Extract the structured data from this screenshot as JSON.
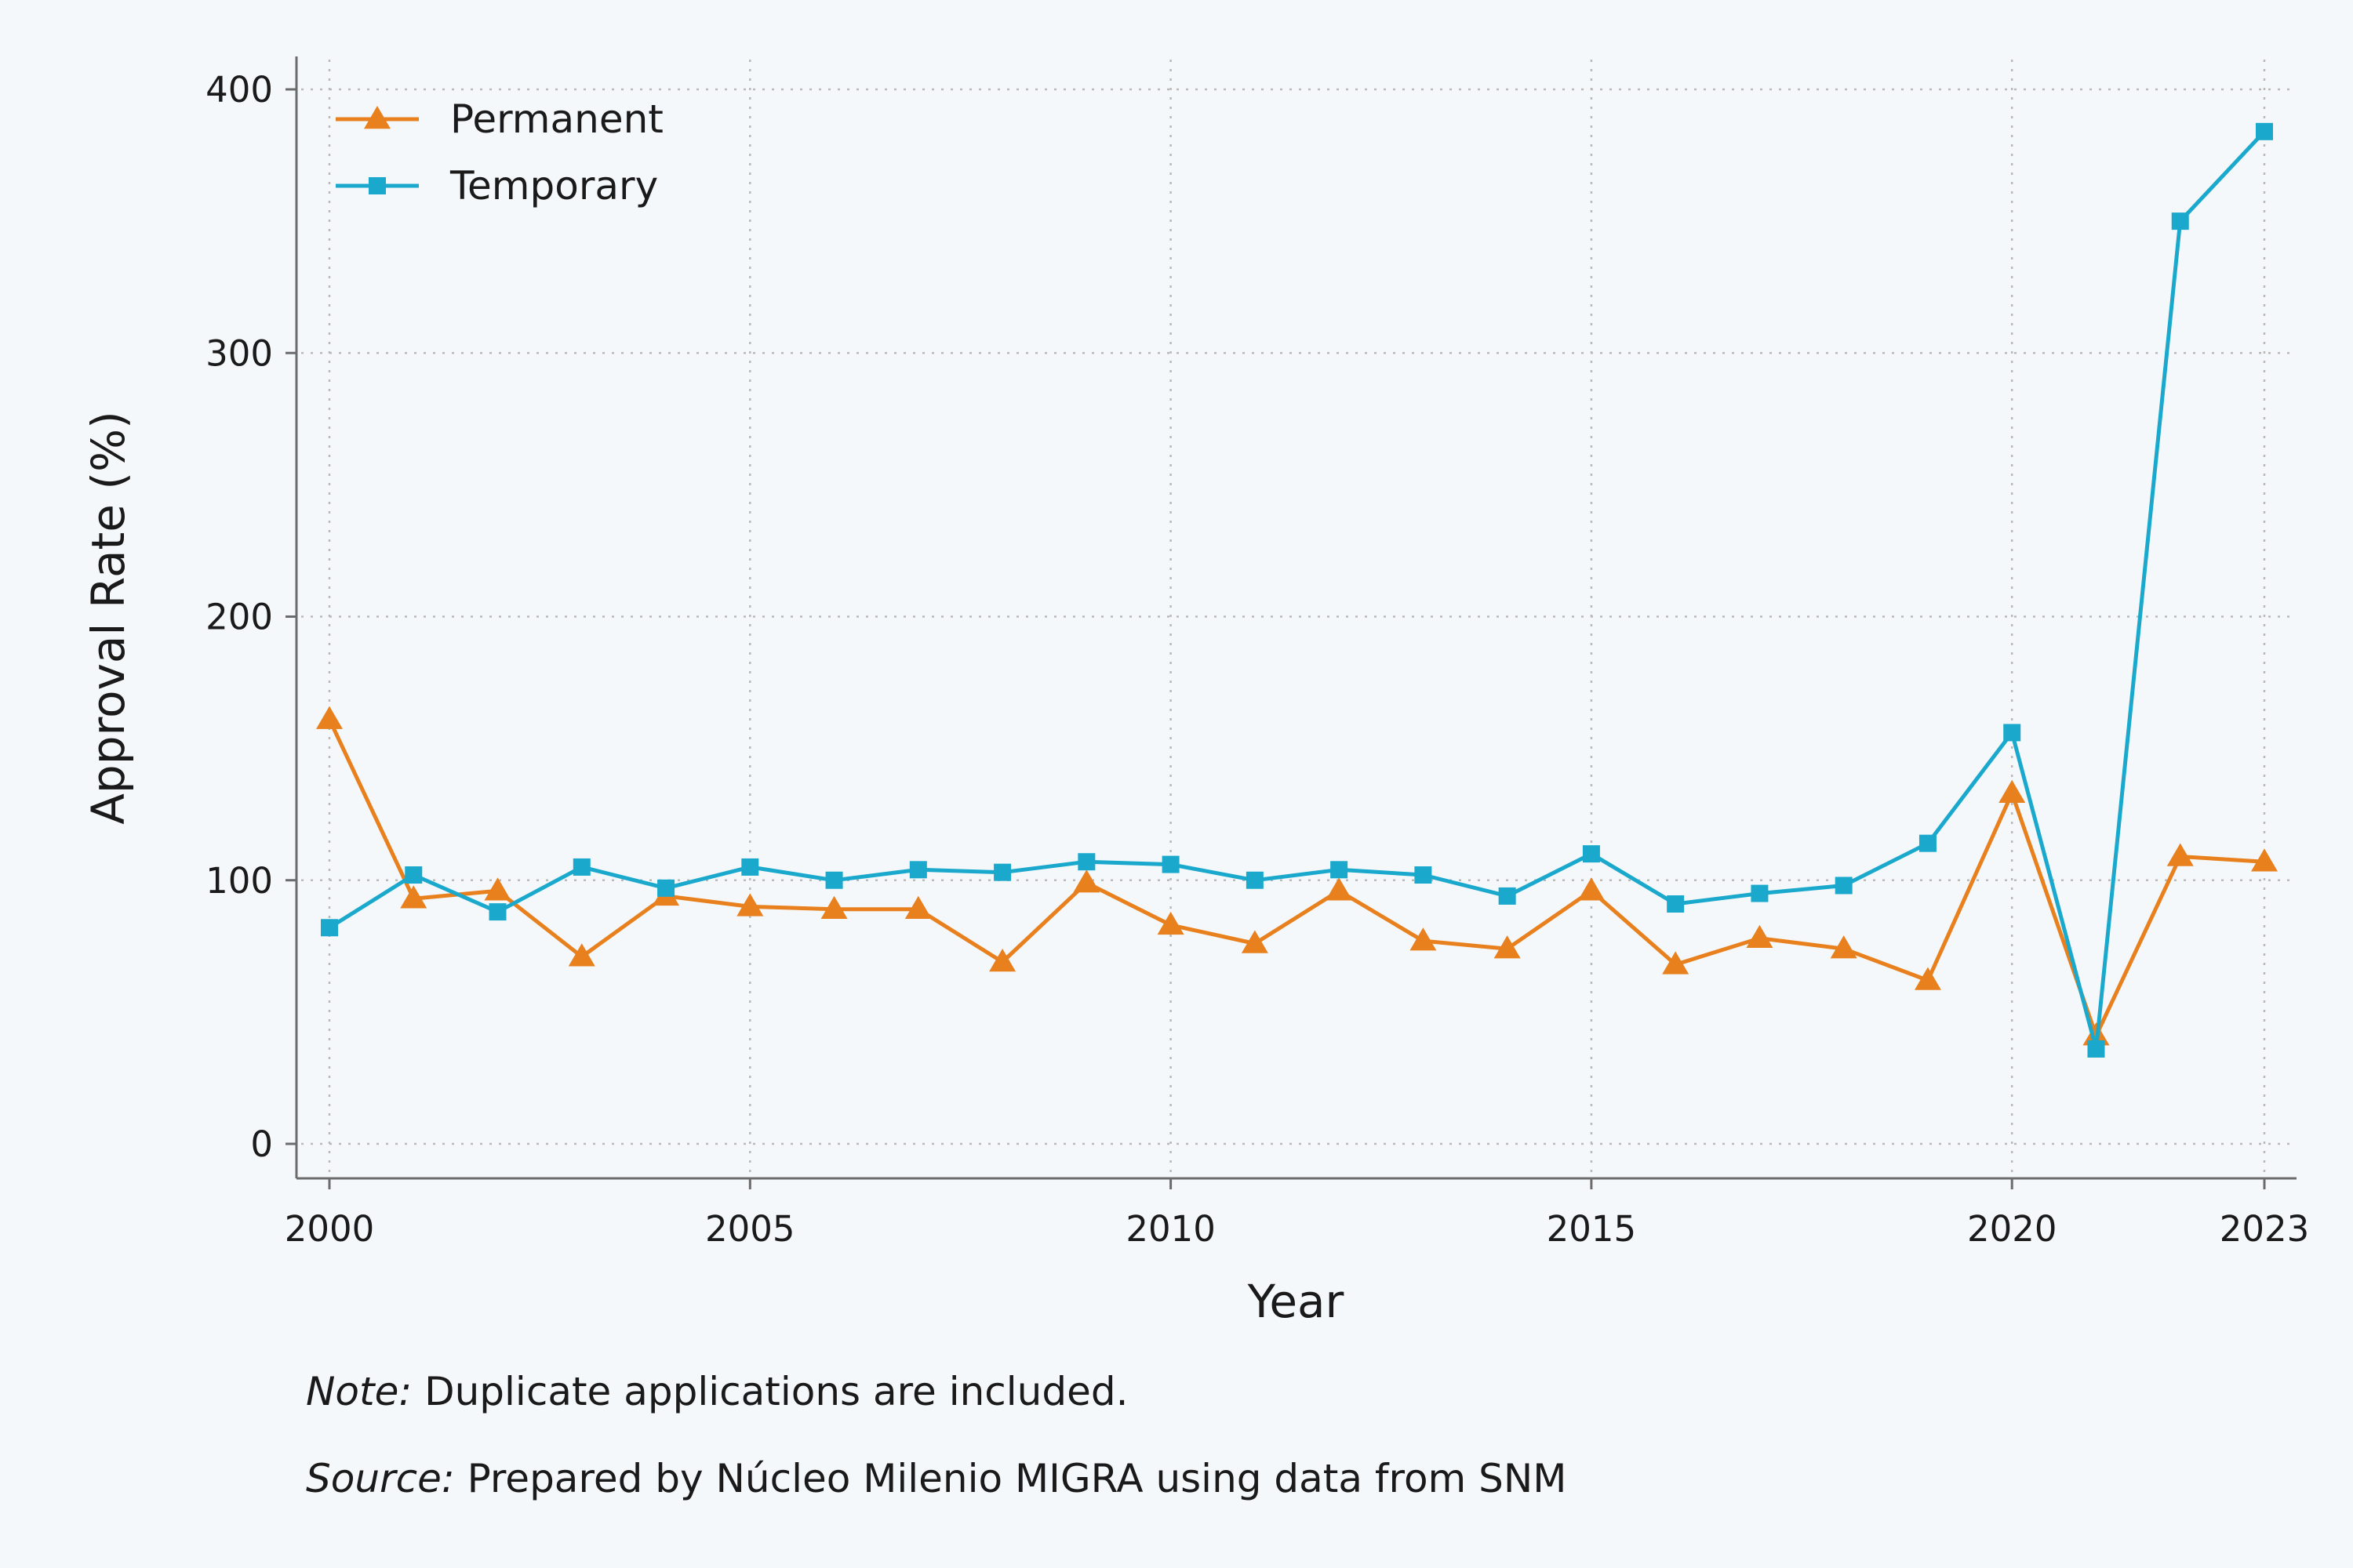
{
  "chart_data": {
    "type": "line",
    "xlabel": "Year",
    "ylabel": "Approval Rate (%)",
    "xlim": [
      2000,
      2023
    ],
    "ylim": [
      0,
      400
    ],
    "x_ticks": [
      2000,
      2005,
      2010,
      2015,
      2020,
      2023
    ],
    "y_ticks": [
      0,
      100,
      200,
      300,
      400
    ],
    "grid": true,
    "legend_position": "top-left",
    "x": [
      2000,
      2001,
      2002,
      2003,
      2004,
      2005,
      2006,
      2007,
      2008,
      2009,
      2010,
      2011,
      2012,
      2013,
      2014,
      2015,
      2016,
      2017,
      2018,
      2019,
      2020,
      2021,
      2022,
      2023
    ],
    "series": [
      {
        "name": "Permanent",
        "color": "#e8801e",
        "marker": "triangle",
        "values": [
          161,
          93,
          96,
          71,
          94,
          90,
          89,
          89,
          69,
          99,
          83,
          76,
          96,
          77,
          74,
          96,
          68,
          78,
          74,
          62,
          133,
          41,
          109,
          107
        ]
      },
      {
        "name": "Temporary",
        "color": "#1aa9cc",
        "marker": "square",
        "values": [
          82,
          102,
          88,
          105,
          97,
          105,
          100,
          104,
          103,
          107,
          106,
          100,
          104,
          102,
          94,
          110,
          91,
          95,
          98,
          114,
          156,
          36,
          350,
          384
        ]
      }
    ]
  },
  "notes": [
    {
      "prefix": "Note:",
      "text": " Duplicate applications are included."
    },
    {
      "prefix": "Source:",
      "text": " Prepared by Núcleo Milenio MIGRA using data from SNM"
    }
  ]
}
